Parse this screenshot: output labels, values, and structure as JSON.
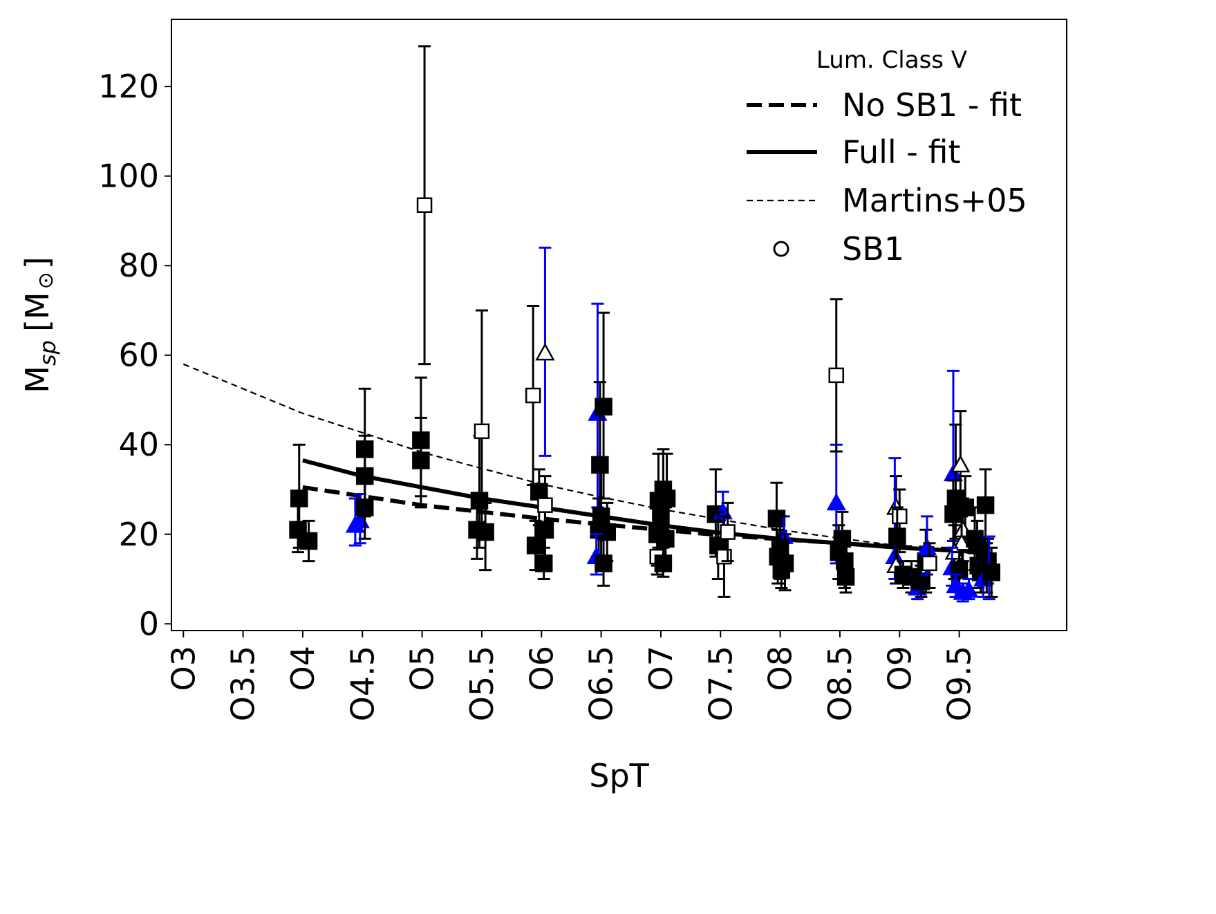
{
  "chart_data": {
    "type": "scatter",
    "xlabel": "SpT",
    "ylabel": "M",
    "ylabel_sub": "sp",
    "ylabel_unit": "[M",
    "ylabel_sun": "⊙",
    "ylabel_close": "]",
    "xlim": [
      2.9,
      10.4
    ],
    "ylim": [
      -1.5,
      135
    ],
    "x_ticks": [
      {
        "v": 3.0,
        "label": "O3"
      },
      {
        "v": 3.5,
        "label": "O3.5"
      },
      {
        "v": 4.0,
        "label": "O4"
      },
      {
        "v": 4.5,
        "label": "O4.5"
      },
      {
        "v": 5.0,
        "label": "O5"
      },
      {
        "v": 5.5,
        "label": "O5.5"
      },
      {
        "v": 6.0,
        "label": "O6"
      },
      {
        "v": 6.5,
        "label": "O6.5"
      },
      {
        "v": 7.0,
        "label": "O7"
      },
      {
        "v": 7.5,
        "label": "O7.5"
      },
      {
        "v": 8.0,
        "label": "O8"
      },
      {
        "v": 8.5,
        "label": "O8.5"
      },
      {
        "v": 9.0,
        "label": "O9"
      },
      {
        "v": 9.5,
        "label": "O9.5"
      }
    ],
    "y_ticks": [
      0,
      20,
      40,
      60,
      80,
      100,
      120
    ],
    "legend": {
      "position": "upper-right",
      "title": "Lum. Class V",
      "entries": [
        {
          "label": "No SB1 - fit",
          "style": "dashed-thick"
        },
        {
          "label": "Full - fit",
          "style": "solid-thick"
        },
        {
          "label": "Martins+05",
          "style": "dashed-thin"
        },
        {
          "label": "SB1",
          "style": "open-circle"
        }
      ]
    },
    "colors": {
      "black": "#000000",
      "blue": "#0000ff",
      "open_fill": "#ffffff"
    },
    "lines": [
      {
        "name": "Martins+05",
        "style": "dashed-thin",
        "x": [
          3.0,
          3.5,
          4.0,
          4.5,
          5.0,
          5.5,
          6.0,
          6.5,
          7.0,
          7.5,
          8.0,
          8.5,
          9.0,
          9.5,
          9.75
        ],
        "y": [
          58.0,
          52.5,
          47.0,
          42.7,
          38.3,
          34.7,
          31.2,
          28.3,
          25.6,
          23.3,
          21.0,
          19.1,
          17.4,
          16.0,
          15.4
        ]
      },
      {
        "name": "Full - fit",
        "style": "solid-thick",
        "x": [
          4.0,
          4.5,
          5.0,
          5.5,
          6.0,
          6.5,
          7.0,
          7.5,
          8.0,
          8.5,
          9.0,
          9.5,
          9.75
        ],
        "y": [
          36.5,
          33.0,
          30.5,
          28.0,
          26.0,
          24.0,
          22.0,
          20.3,
          19.0,
          18.0,
          17.0,
          16.3,
          16.0
        ]
      },
      {
        "name": "No SB1 - fit",
        "style": "dashed-thick",
        "x": [
          4.0,
          4.5,
          5.0,
          5.5,
          6.0,
          6.5,
          7.0,
          7.5,
          8.0,
          8.5,
          9.0,
          9.5,
          9.75
        ],
        "y": [
          30.5,
          28.5,
          26.5,
          25.0,
          23.5,
          22.2,
          21.0,
          19.8,
          18.9,
          18.0,
          17.2,
          16.6,
          16.3
        ]
      }
    ],
    "points": [
      {
        "x": 3.97,
        "y": 28,
        "lo": 17,
        "hi": 40,
        "m": "sq",
        "fill": "black"
      },
      {
        "x": 3.96,
        "y": 21,
        "lo": 16,
        "hi": 27,
        "m": "sq",
        "fill": "black"
      },
      {
        "x": 4.05,
        "y": 18.5,
        "lo": 14,
        "hi": 23,
        "m": "sq",
        "fill": "black"
      },
      {
        "x": 4.44,
        "y": 22,
        "lo": 17.5,
        "hi": 28,
        "m": "tri",
        "fill": "blue"
      },
      {
        "x": 4.48,
        "y": 23,
        "lo": 18,
        "hi": 29,
        "m": "tri",
        "fill": "blue"
      },
      {
        "x": 4.52,
        "y": 39,
        "lo": 27,
        "hi": 52.5,
        "m": "sq",
        "fill": "black"
      },
      {
        "x": 4.52,
        "y": 33,
        "lo": 24,
        "hi": 42,
        "m": "sq",
        "fill": "black"
      },
      {
        "x": 4.52,
        "y": 26,
        "lo": 19,
        "hi": 33,
        "m": "sq",
        "fill": "black"
      },
      {
        "x": 4.99,
        "y": 41,
        "lo": 28.5,
        "hi": 55,
        "m": "sq",
        "fill": "black"
      },
      {
        "x": 4.99,
        "y": 36.5,
        "lo": 26,
        "hi": 46,
        "m": "sq",
        "fill": "black"
      },
      {
        "x": 5.02,
        "y": 93.5,
        "lo": 58,
        "hi": 129,
        "m": "sq",
        "fill": "white"
      },
      {
        "x": 5.48,
        "y": 27.5,
        "lo": 17,
        "hi": 42,
        "m": "sq",
        "fill": "black"
      },
      {
        "x": 5.46,
        "y": 21,
        "lo": 14.5,
        "hi": 29,
        "m": "sq",
        "fill": "black"
      },
      {
        "x": 5.5,
        "y": 43,
        "lo": 20,
        "hi": 70,
        "m": "sq",
        "fill": "white"
      },
      {
        "x": 5.53,
        "y": 20.5,
        "lo": 12,
        "hi": 27,
        "m": "sq",
        "fill": "black"
      },
      {
        "x": 5.93,
        "y": 51,
        "lo": 31,
        "hi": 71,
        "m": "sq",
        "fill": "white"
      },
      {
        "x": 6.03,
        "y": 60.5,
        "lo": 37.5,
        "hi": 84,
        "m": "tri",
        "fill": "white",
        "bar": "blue"
      },
      {
        "x": 5.98,
        "y": 29.5,
        "lo": 22,
        "hi": 34.5,
        "m": "sq",
        "fill": "black"
      },
      {
        "x": 5.95,
        "y": 17.5,
        "lo": 12,
        "hi": 23,
        "m": "sq",
        "fill": "black"
      },
      {
        "x": 6.03,
        "y": 21,
        "lo": 15,
        "hi": 27,
        "m": "sq",
        "fill": "black"
      },
      {
        "x": 6.03,
        "y": 26.5,
        "lo": 20,
        "hi": 33,
        "m": "sq",
        "fill": "white"
      },
      {
        "x": 6.02,
        "y": 13.5,
        "lo": 10,
        "hi": 17,
        "m": "sq",
        "fill": "black"
      },
      {
        "x": 6.47,
        "y": 47,
        "lo": 26,
        "hi": 71.5,
        "m": "tri",
        "fill": "blue"
      },
      {
        "x": 6.49,
        "y": 35.5,
        "lo": 20,
        "hi": 54,
        "m": "sq",
        "fill": "black"
      },
      {
        "x": 6.52,
        "y": 48.5,
        "lo": 28,
        "hi": 69.5,
        "m": "sq",
        "fill": "black"
      },
      {
        "x": 6.5,
        "y": 24,
        "lo": 15,
        "hi": 34,
        "m": "sq",
        "fill": "black"
      },
      {
        "x": 6.48,
        "y": 21,
        "lo": 14,
        "hi": 28,
        "m": "sq",
        "fill": "black"
      },
      {
        "x": 6.55,
        "y": 20.5,
        "lo": 14,
        "hi": 27,
        "m": "sq",
        "fill": "black"
      },
      {
        "x": 6.46,
        "y": 15,
        "lo": 11,
        "hi": 20,
        "m": "tri",
        "fill": "blue"
      },
      {
        "x": 6.52,
        "y": 13.5,
        "lo": 8.5,
        "hi": 19,
        "m": "sq",
        "fill": "black"
      },
      {
        "x": 6.98,
        "y": 27.5,
        "lo": 17,
        "hi": 38,
        "m": "sq",
        "fill": "black"
      },
      {
        "x": 7.02,
        "y": 30,
        "lo": 21,
        "hi": 39,
        "m": "sq",
        "fill": "black"
      },
      {
        "x": 7.05,
        "y": 28,
        "lo": 18,
        "hi": 38,
        "m": "sq",
        "fill": "black"
      },
      {
        "x": 7.0,
        "y": 24,
        "lo": 17,
        "hi": 31,
        "m": "sq",
        "fill": "black"
      },
      {
        "x": 6.97,
        "y": 20,
        "lo": 13,
        "hi": 27,
        "m": "sq",
        "fill": "black"
      },
      {
        "x": 7.04,
        "y": 19,
        "lo": 12,
        "hi": 26,
        "m": "sq",
        "fill": "black"
      },
      {
        "x": 6.97,
        "y": 15,
        "lo": 11,
        "hi": 19,
        "m": "sq",
        "fill": "white"
      },
      {
        "x": 7.02,
        "y": 13.5,
        "lo": 10.5,
        "hi": 17,
        "m": "sq",
        "fill": "black"
      },
      {
        "x": 7.46,
        "y": 24.5,
        "lo": 15,
        "hi": 34.5,
        "m": "sq",
        "fill": "black"
      },
      {
        "x": 7.52,
        "y": 25,
        "lo": 19,
        "hi": 29.5,
        "m": "tri",
        "fill": "blue"
      },
      {
        "x": 7.48,
        "y": 17.5,
        "lo": 10,
        "hi": 25,
        "m": "sq",
        "fill": "black"
      },
      {
        "x": 7.53,
        "y": 15,
        "lo": 6,
        "hi": 24,
        "m": "sq",
        "fill": "white"
      },
      {
        "x": 7.56,
        "y": 20.5,
        "lo": 14,
        "hi": 27,
        "m": "sq",
        "fill": "white"
      },
      {
        "x": 7.97,
        "y": 23.5,
        "lo": 15.5,
        "hi": 31.5,
        "m": "sq",
        "fill": "black"
      },
      {
        "x": 8.03,
        "y": 19.5,
        "lo": 15,
        "hi": 24,
        "m": "tri",
        "fill": "blue"
      },
      {
        "x": 8.0,
        "y": 17,
        "lo": 10,
        "hi": 24,
        "m": "sq",
        "fill": "black"
      },
      {
        "x": 7.98,
        "y": 15,
        "lo": 9,
        "hi": 21,
        "m": "sq",
        "fill": "black"
      },
      {
        "x": 8.04,
        "y": 13.5,
        "lo": 7.5,
        "hi": 20,
        "m": "sq",
        "fill": "black"
      },
      {
        "x": 8.01,
        "y": 12,
        "lo": 8,
        "hi": 16,
        "m": "sq",
        "fill": "black"
      },
      {
        "x": 8.47,
        "y": 27,
        "lo": 13.5,
        "hi": 40,
        "m": "tri",
        "fill": "blue"
      },
      {
        "x": 8.47,
        "y": 55.5,
        "lo": 38.5,
        "hi": 72.5,
        "m": "sq",
        "fill": "white"
      },
      {
        "x": 8.52,
        "y": 19,
        "lo": 13,
        "hi": 25,
        "m": "sq",
        "fill": "black"
      },
      {
        "x": 8.49,
        "y": 16,
        "lo": 10,
        "hi": 22,
        "m": "sq",
        "fill": "black"
      },
      {
        "x": 8.54,
        "y": 14,
        "lo": 8,
        "hi": 20,
        "m": "sq",
        "fill": "black"
      },
      {
        "x": 8.55,
        "y": 10.5,
        "lo": 7,
        "hi": 14,
        "m": "sq",
        "fill": "black"
      },
      {
        "x": 8.97,
        "y": 26,
        "lo": 19,
        "hi": 33,
        "m": "tri",
        "fill": "white"
      },
      {
        "x": 8.96,
        "y": 15,
        "lo": 10,
        "hi": 37,
        "m": "tri",
        "fill": "blue"
      },
      {
        "x": 9.0,
        "y": 24,
        "lo": 16,
        "hi": 30,
        "m": "sq",
        "fill": "white"
      },
      {
        "x": 8.98,
        "y": 19.5,
        "lo": 13,
        "hi": 26,
        "m": "sq",
        "fill": "black"
      },
      {
        "x": 8.97,
        "y": 13,
        "lo": 9,
        "hi": 17,
        "m": "tri",
        "fill": "white"
      },
      {
        "x": 9.03,
        "y": 11,
        "lo": 8,
        "hi": 14,
        "m": "sq",
        "fill": "black"
      },
      {
        "x": 9.1,
        "y": 10.5,
        "lo": 7,
        "hi": 14,
        "m": "sq",
        "fill": "black"
      },
      {
        "x": 9.15,
        "y": 8,
        "lo": 5.5,
        "hi": 11,
        "m": "tri",
        "fill": "blue"
      },
      {
        "x": 9.18,
        "y": 9.5,
        "lo": 6,
        "hi": 13,
        "m": "sq",
        "fill": "black"
      },
      {
        "x": 9.22,
        "y": 14,
        "lo": 7,
        "hi": 21,
        "m": "sq",
        "fill": "black"
      },
      {
        "x": 9.23,
        "y": 17,
        "lo": 11,
        "hi": 24,
        "m": "tri",
        "fill": "blue"
      },
      {
        "x": 9.25,
        "y": 13.5,
        "lo": 8,
        "hi": 18,
        "m": "sq",
        "fill": "white"
      },
      {
        "x": 9.45,
        "y": 33.5,
        "lo": 18.5,
        "hi": 56.5,
        "m": "tri",
        "fill": "blue"
      },
      {
        "x": 9.47,
        "y": 28,
        "lo": 19,
        "hi": 44.5,
        "m": "sq",
        "fill": "black"
      },
      {
        "x": 9.51,
        "y": 35.5,
        "lo": 24,
        "hi": 47.5,
        "m": "tri",
        "fill": "white"
      },
      {
        "x": 9.45,
        "y": 24.5,
        "lo": 17,
        "hi": 32,
        "m": "sq",
        "fill": "black"
      },
      {
        "x": 9.55,
        "y": 26,
        "lo": 19,
        "hi": 33,
        "m": "sq",
        "fill": "black"
      },
      {
        "x": 9.53,
        "y": 21,
        "lo": 14,
        "hi": 28,
        "m": "tri",
        "fill": "white"
      },
      {
        "x": 9.52,
        "y": 18,
        "lo": 12,
        "hi": 24,
        "m": "tri",
        "fill": "white"
      },
      {
        "x": 9.46,
        "y": 16,
        "lo": 10,
        "hi": 22,
        "m": "tri",
        "fill": "white"
      },
      {
        "x": 9.44,
        "y": 12.5,
        "lo": 8.5,
        "hi": 17,
        "m": "tri",
        "fill": "blue"
      },
      {
        "x": 9.5,
        "y": 12,
        "lo": 8,
        "hi": 16,
        "m": "sq",
        "fill": "black"
      },
      {
        "x": 9.47,
        "y": 8.5,
        "lo": 6,
        "hi": 11,
        "m": "tri",
        "fill": "blue"
      },
      {
        "x": 9.53,
        "y": 7,
        "lo": 5,
        "hi": 9,
        "m": "tri",
        "fill": "blue"
      },
      {
        "x": 9.58,
        "y": 7.5,
        "lo": 5.5,
        "hi": 10,
        "m": "tri",
        "fill": "blue"
      },
      {
        "x": 9.63,
        "y": 19,
        "lo": 12,
        "hi": 26,
        "m": "sq",
        "fill": "black"
      },
      {
        "x": 9.65,
        "y": 17.5,
        "lo": 12,
        "hi": 23,
        "m": "sq",
        "fill": "black"
      },
      {
        "x": 9.66,
        "y": 13,
        "lo": 8,
        "hi": 18,
        "m": "sq",
        "fill": "black"
      },
      {
        "x": 9.68,
        "y": 11.5,
        "lo": 7,
        "hi": 16,
        "m": "sq",
        "fill": "black"
      },
      {
        "x": 9.7,
        "y": 10,
        "lo": 6,
        "hi": 14,
        "m": "tri",
        "fill": "blue"
      },
      {
        "x": 9.72,
        "y": 26.5,
        "lo": 18,
        "hi": 34.5,
        "m": "sq",
        "fill": "black"
      },
      {
        "x": 9.73,
        "y": 12.5,
        "lo": 7,
        "hi": 18,
        "m": "sq",
        "fill": "black"
      },
      {
        "x": 9.74,
        "y": 14,
        "lo": 9,
        "hi": 19,
        "m": "sq",
        "fill": "black"
      },
      {
        "x": 9.75,
        "y": 12,
        "lo": 5.5,
        "hi": 19.5,
        "m": "tri",
        "fill": "blue"
      },
      {
        "x": 9.77,
        "y": 11.5,
        "lo": 6,
        "hi": 17,
        "m": "sq",
        "fill": "black"
      }
    ]
  }
}
